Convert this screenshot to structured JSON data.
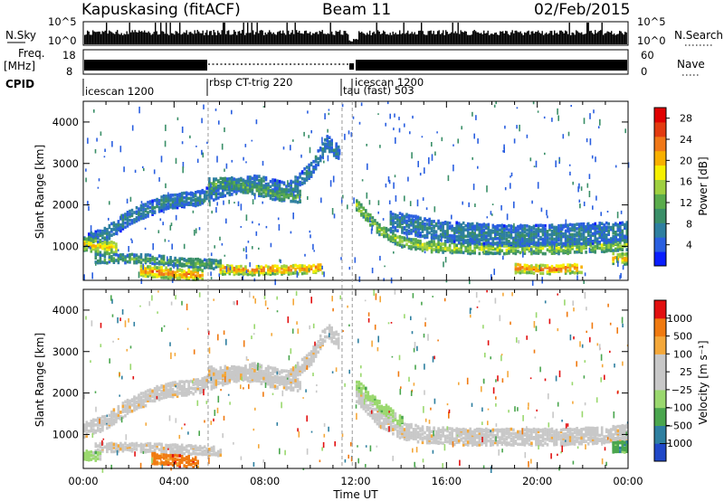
{
  "header": {
    "radar": "Kapuskasing (fitACF)",
    "beam": "Beam 11",
    "date": "02/Feb/2015"
  },
  "panels": {
    "nsky_label": "N.Sky",
    "nsky_ticks": [
      "10^5",
      "10^0"
    ],
    "nsearch_label": "N.Search",
    "nsearch_ticks": [
      "10^5",
      "10^0"
    ],
    "freq_label": "Freq.",
    "freq_unit": "[MHz]",
    "freq_ticks": [
      "18",
      "8"
    ],
    "nave_label": "Nave",
    "nave_ticks": [
      "60",
      "0"
    ],
    "cpid_label": "CPID",
    "cpid_segments": [
      {
        "name": "icescan 1200",
        "start": 0.0,
        "end": 5.5
      },
      {
        "name": "rbsp CT-trig 220",
        "start": 5.5,
        "end": 11.4
      },
      {
        "name": "tau (fast) 503",
        "start": 11.4,
        "end": 11.85
      },
      {
        "name": "icescan 1200",
        "start": 11.85,
        "end": 24.0
      }
    ]
  },
  "colors": {
    "power": [
      "#0a1eff",
      "#2a5fe0",
      "#2e7fa0",
      "#3a8f68",
      "#5aac4c",
      "#9fd040",
      "#f6f000",
      "#f8b000",
      "#f07818",
      "#e33b10",
      "#e00000"
    ],
    "velocity": [
      "#e21010",
      "#f07a10",
      "#f4a83a",
      "#c8c8c8",
      "#c8c8c8",
      "#9ad86e",
      "#4aa64e",
      "#2e7fa0",
      "#2048c8"
    ]
  },
  "chart_data": [
    {
      "type": "heatmap",
      "title": "Power",
      "xlabel": "Time UT",
      "ylabel": "Slant Range [km]",
      "xlim": [
        0,
        24
      ],
      "ylim": [
        180,
        4500
      ],
      "x_ticks": [
        "00:00",
        "04:00",
        "08:00",
        "12:00",
        "16:00",
        "20:00",
        "00:00"
      ],
      "y_ticks": [
        1000,
        2000,
        3000,
        4000
      ],
      "colorbar": {
        "label": "Power [dB]",
        "ticks": [
          4,
          8,
          12,
          16,
          20,
          24,
          28
        ],
        "range": [
          0,
          30
        ]
      },
      "echo_bands": [
        {
          "t": [
            0.0,
            1.0,
            2.0,
            3.5,
            5.0,
            6.0,
            7.5,
            9.0,
            10.0,
            10.7,
            11.2
          ],
          "range": [
            1100,
            1300,
            1700,
            2050,
            2150,
            2350,
            2550,
            2350,
            2850,
            3500,
            3250
          ],
          "half_width": 160,
          "level": 7
        },
        {
          "t": [
            5.5,
            6.5,
            7.5,
            8.5,
            9.5
          ],
          "range": [
            2500,
            2500,
            2400,
            2250,
            2200
          ],
          "half_width": 140,
          "level": 12
        },
        {
          "t": [
            12.0,
            13.0,
            14.0,
            15.0,
            17.0,
            19.0,
            21.0,
            23.0,
            24.0
          ],
          "range": [
            2000,
            1400,
            1100,
            1000,
            950,
            950,
            950,
            1000,
            1050
          ],
          "half_width": 120,
          "level": 16
        },
        {
          "t": [
            13.5,
            16.0,
            19.0,
            22.0,
            24.0
          ],
          "range": [
            1600,
            1350,
            1250,
            1300,
            1350
          ],
          "half_width": 230,
          "level": 7
        },
        {
          "t": [
            0.0,
            0.7,
            1.5
          ],
          "range": [
            1050,
            1000,
            950
          ],
          "half_width": 150,
          "level": 20
        },
        {
          "t": [
            0.5,
            2.5,
            4.5,
            6.0
          ],
          "range": [
            700,
            700,
            600,
            550
          ],
          "half_width": 90,
          "level": 12
        },
        {
          "t": [
            2.5,
            3.5,
            4.5,
            5.2
          ],
          "range": [
            420,
            360,
            320,
            320
          ],
          "half_width": 120,
          "level": 25
        },
        {
          "t": [
            6.0,
            7.5,
            9.0,
            10.5
          ],
          "range": [
            450,
            430,
            450,
            470
          ],
          "half_width": 110,
          "level": 24
        },
        {
          "t": [
            19.0,
            20.5,
            22.0
          ],
          "range": [
            480,
            450,
            480
          ],
          "half_width": 110,
          "level": 25
        },
        {
          "t": [
            23.3,
            24.0
          ],
          "range": [
            700,
            700
          ],
          "half_width": 120,
          "level": 22
        }
      ]
    },
    {
      "type": "heatmap",
      "title": "Velocity",
      "xlabel": "Time UT",
      "ylabel": "Slant Range [km]",
      "xlim": [
        0,
        24
      ],
      "ylim": [
        180,
        4500
      ],
      "x_ticks": [
        "00:00",
        "04:00",
        "08:00",
        "12:00",
        "16:00",
        "20:00",
        "00:00"
      ],
      "y_ticks": [
        1000,
        2000,
        3000,
        4000
      ],
      "colorbar": {
        "label": "Velocity [m s⁻¹]",
        "ticks": [
          "1000",
          "500",
          "100",
          "25",
          "−25",
          "−100",
          "−500",
          "−1000"
        ]
      },
      "echo_bands": [
        {
          "t": [
            0.0,
            1.0,
            2.0,
            3.5,
            5.0,
            6.0,
            7.5,
            9.0,
            10.0,
            10.7,
            11.2
          ],
          "range": [
            1100,
            1300,
            1700,
            2050,
            2150,
            2350,
            2550,
            2350,
            2850,
            3500,
            3250
          ],
          "half_width": 160,
          "level": 3
        },
        {
          "t": [
            5.5,
            6.5,
            7.5,
            8.5,
            9.5
          ],
          "range": [
            2500,
            2500,
            2400,
            2250,
            2200
          ],
          "half_width": 140,
          "level": 3
        },
        {
          "t": [
            12.0,
            13.0,
            14.0,
            15.0,
            17.0,
            19.0,
            21.0,
            23.0,
            24.0
          ],
          "range": [
            2000,
            1400,
            1100,
            1000,
            950,
            950,
            950,
            1000,
            1050
          ],
          "half_width": 200,
          "level": 3
        },
        {
          "t": [
            12.0,
            13.0,
            14.0
          ],
          "range": [
            2200,
            1700,
            1300
          ],
          "half_width": 120,
          "level": 5
        },
        {
          "t": [
            0.5,
            2.5,
            4.5,
            6.0
          ],
          "range": [
            700,
            700,
            650,
            600
          ],
          "half_width": 110,
          "level": 3
        },
        {
          "t": [
            3.0,
            4.0,
            5.0
          ],
          "range": [
            420,
            370,
            330
          ],
          "half_width": 120,
          "level": 1
        },
        {
          "t": [
            0.0,
            0.7
          ],
          "range": [
            500,
            450
          ],
          "half_width": 90,
          "level": 5
        },
        {
          "t": [
            23.3,
            24.0
          ],
          "range": [
            700,
            700
          ],
          "half_width": 120,
          "level": 6
        }
      ]
    }
  ]
}
